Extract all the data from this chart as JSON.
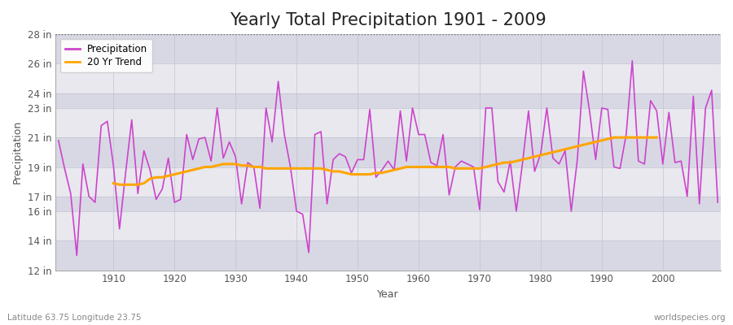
{
  "title": "Yearly Total Precipitation 1901 - 2009",
  "xlabel": "Year",
  "ylabel": "Precipitation",
  "bottom_left_label": "Latitude 63.75 Longitude 23.75",
  "bottom_right_label": "worldspecies.org",
  "years": [
    1901,
    1902,
    1903,
    1904,
    1905,
    1906,
    1907,
    1908,
    1909,
    1910,
    1911,
    1912,
    1913,
    1914,
    1915,
    1916,
    1917,
    1918,
    1919,
    1920,
    1921,
    1922,
    1923,
    1924,
    1925,
    1926,
    1927,
    1928,
    1929,
    1930,
    1931,
    1932,
    1933,
    1934,
    1935,
    1936,
    1937,
    1938,
    1939,
    1940,
    1941,
    1942,
    1943,
    1944,
    1945,
    1946,
    1947,
    1948,
    1949,
    1950,
    1951,
    1952,
    1953,
    1954,
    1955,
    1956,
    1957,
    1958,
    1959,
    1960,
    1961,
    1962,
    1963,
    1964,
    1965,
    1966,
    1967,
    1968,
    1969,
    1970,
    1971,
    1972,
    1973,
    1974,
    1975,
    1976,
    1977,
    1978,
    1979,
    1980,
    1981,
    1982,
    1983,
    1984,
    1985,
    1986,
    1987,
    1988,
    1989,
    1990,
    1991,
    1992,
    1993,
    1994,
    1995,
    1996,
    1997,
    1998,
    1999,
    2000,
    2001,
    2002,
    2003,
    2004,
    2005,
    2006,
    2007,
    2008,
    2009
  ],
  "precip": [
    20.8,
    18.9,
    17.2,
    13.0,
    19.2,
    17.0,
    16.6,
    21.8,
    22.1,
    19.1,
    14.8,
    18.6,
    22.2,
    17.2,
    20.1,
    18.8,
    16.8,
    17.5,
    19.6,
    16.6,
    16.8,
    21.2,
    19.5,
    20.9,
    21.0,
    19.4,
    23.0,
    19.6,
    20.7,
    19.7,
    16.5,
    19.3,
    19.0,
    16.2,
    23.0,
    20.7,
    24.8,
    21.2,
    19.0,
    16.0,
    15.8,
    13.2,
    21.2,
    21.4,
    16.5,
    19.5,
    19.9,
    19.7,
    18.6,
    19.5,
    19.5,
    22.9,
    18.3,
    18.8,
    19.4,
    18.8,
    22.8,
    19.4,
    23.0,
    21.2,
    21.2,
    19.3,
    19.1,
    21.2,
    17.1,
    19.0,
    19.4,
    19.2,
    19.0,
    16.1,
    23.0,
    23.0,
    18.0,
    17.3,
    19.4,
    16.0,
    19.2,
    22.8,
    18.7,
    19.9,
    23.0,
    19.6,
    19.2,
    20.1,
    16.0,
    19.5,
    25.5,
    22.8,
    19.5,
    23.0,
    22.9,
    19.0,
    18.9,
    21.2,
    26.2,
    19.4,
    19.2,
    23.5,
    22.8,
    19.2,
    22.7,
    19.3,
    19.4,
    17.0,
    23.8,
    16.5,
    23.0,
    24.2,
    16.6
  ],
  "trend": [
    null,
    null,
    null,
    null,
    null,
    null,
    null,
    null,
    null,
    17.9,
    17.8,
    17.8,
    17.8,
    17.8,
    17.9,
    18.2,
    18.3,
    18.3,
    18.4,
    18.5,
    18.6,
    18.7,
    18.8,
    18.9,
    19.0,
    19.0,
    19.1,
    19.2,
    19.2,
    19.2,
    19.1,
    19.1,
    19.0,
    19.0,
    18.9,
    18.9,
    18.9,
    18.9,
    18.9,
    18.9,
    18.9,
    18.9,
    18.9,
    18.9,
    18.8,
    18.7,
    18.7,
    18.6,
    18.5,
    18.5,
    18.5,
    18.5,
    18.6,
    18.6,
    18.7,
    18.8,
    18.9,
    19.0,
    19.0,
    19.0,
    19.0,
    19.0,
    19.0,
    19.0,
    19.0,
    18.9,
    18.9,
    18.9,
    18.9,
    18.9,
    19.0,
    19.1,
    19.2,
    19.3,
    19.3,
    19.4,
    19.5,
    19.6,
    19.7,
    19.8,
    19.9,
    20.0,
    20.1,
    20.2,
    20.3,
    20.4,
    20.5,
    20.6,
    20.7,
    20.8,
    20.9,
    21.0,
    21.0,
    21.0,
    21.0,
    21.0,
    21.0,
    21.0,
    21.0,
    null,
    null,
    null,
    null,
    null,
    null,
    null,
    null,
    null,
    null
  ],
  "precip_color": "#cc44cc",
  "trend_color": "#ffa500",
  "fig_bg_color": "#ffffff",
  "plot_bg_color": "#e8e8ee",
  "stripe_color": "#d8d8e4",
  "ylim": [
    12,
    28
  ],
  "yticks": [
    12,
    14,
    16,
    17,
    19,
    21,
    23,
    24,
    26,
    28
  ],
  "dotted_line_y": 28,
  "title_fontsize": 15,
  "axis_label_fontsize": 9,
  "tick_fontsize": 8.5
}
